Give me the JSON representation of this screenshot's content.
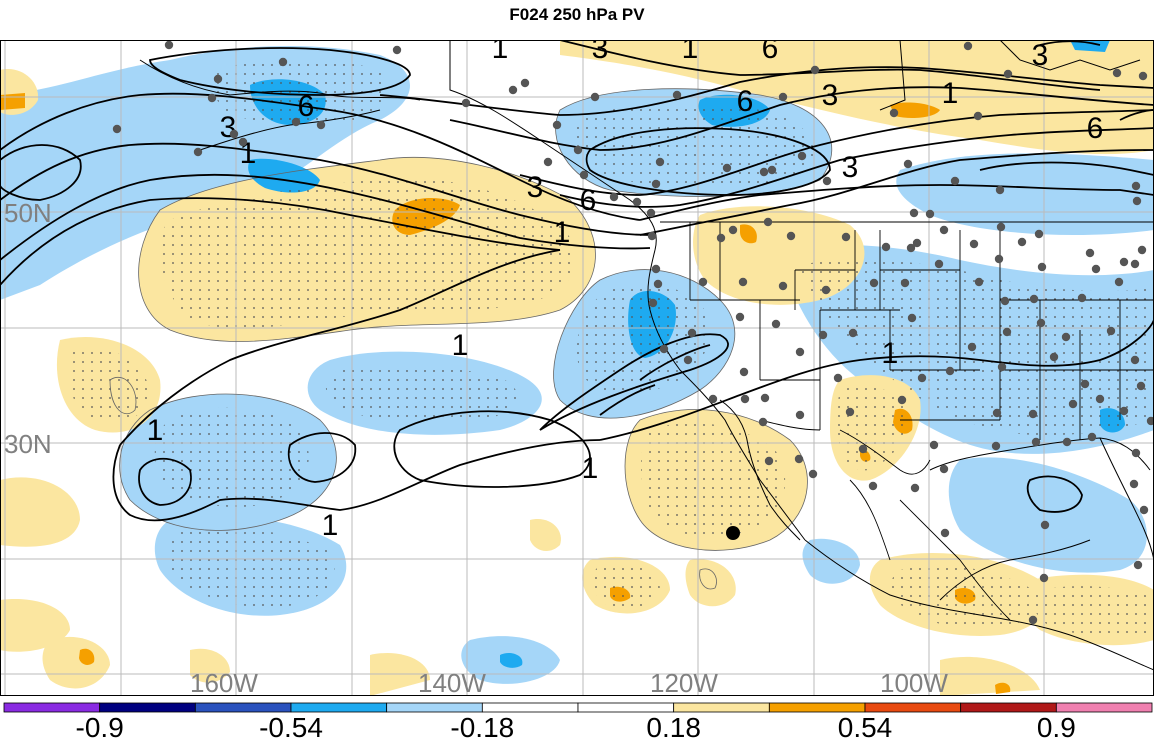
{
  "title": "F024 250 hPa PV",
  "map": {
    "lat_labels": [
      "50N",
      "30N"
    ],
    "lon_labels": [
      "160W",
      "140W",
      "120W",
      "100W"
    ],
    "contour_labels": [
      "1",
      "3",
      "6",
      "1",
      "3",
      "6",
      "1",
      "3",
      "6",
      "1",
      "3",
      "1",
      "1",
      "1",
      "1",
      "1",
      "3",
      "6",
      "3",
      "1",
      "6"
    ],
    "colors": {
      "light_blue": "#a5d6f8",
      "cyan": "#1eaaf0",
      "light_yellow": "#fbe6a0",
      "orange": "#f5a000",
      "contour": "#000000",
      "graticule": "#bbbbbb",
      "station_dot": "#555555"
    }
  },
  "colorbar": {
    "tick_labels": [
      "-0.9",
      "-0.54",
      "-0.18",
      "0.18",
      "0.54",
      "0.9"
    ],
    "colors": [
      "#8a2be2",
      "#000080",
      "#2a52be",
      "#1eaaf0",
      "#a5d6f8",
      "#ffffff",
      "#ffffff",
      "#fbe6a0",
      "#f5a000",
      "#e84a10",
      "#b01818",
      "#f080b0"
    ]
  }
}
